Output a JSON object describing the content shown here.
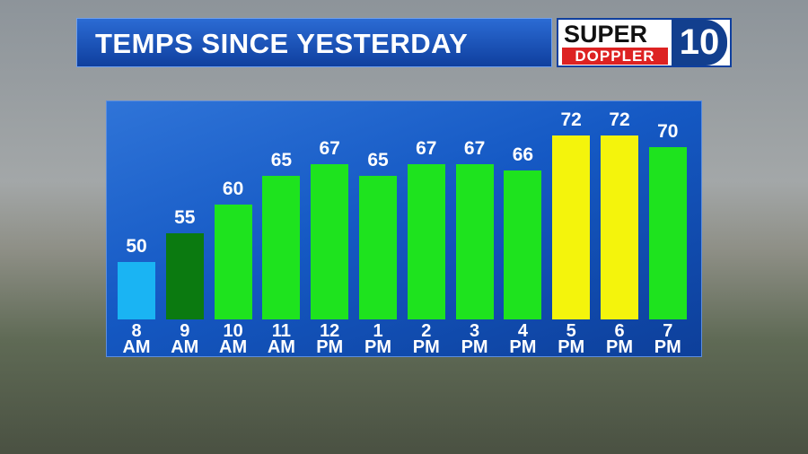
{
  "chart_data": {
    "type": "bar",
    "title": "TEMPS SINCE YESTERDAY",
    "categories": [
      "8 AM",
      "9 AM",
      "10 AM",
      "11 AM",
      "12 PM",
      "1 PM",
      "2 PM",
      "3 PM",
      "4 PM",
      "5 PM",
      "6 PM",
      "7 PM"
    ],
    "values": [
      50,
      55,
      60,
      65,
      67,
      65,
      67,
      67,
      66,
      72,
      72,
      70
    ],
    "colors": [
      "#1ab4f3",
      "#0b7a10",
      "#1ee31e",
      "#1ee31e",
      "#1ee31e",
      "#1ee31e",
      "#1ee31e",
      "#1ee31e",
      "#1ee31e",
      "#f4f40c",
      "#f4f40c",
      "#1ee31e"
    ],
    "ylim": [
      40,
      78
    ]
  },
  "logo": {
    "line1": "SUPER",
    "line2": "DOPPLER",
    "channel": "10"
  }
}
